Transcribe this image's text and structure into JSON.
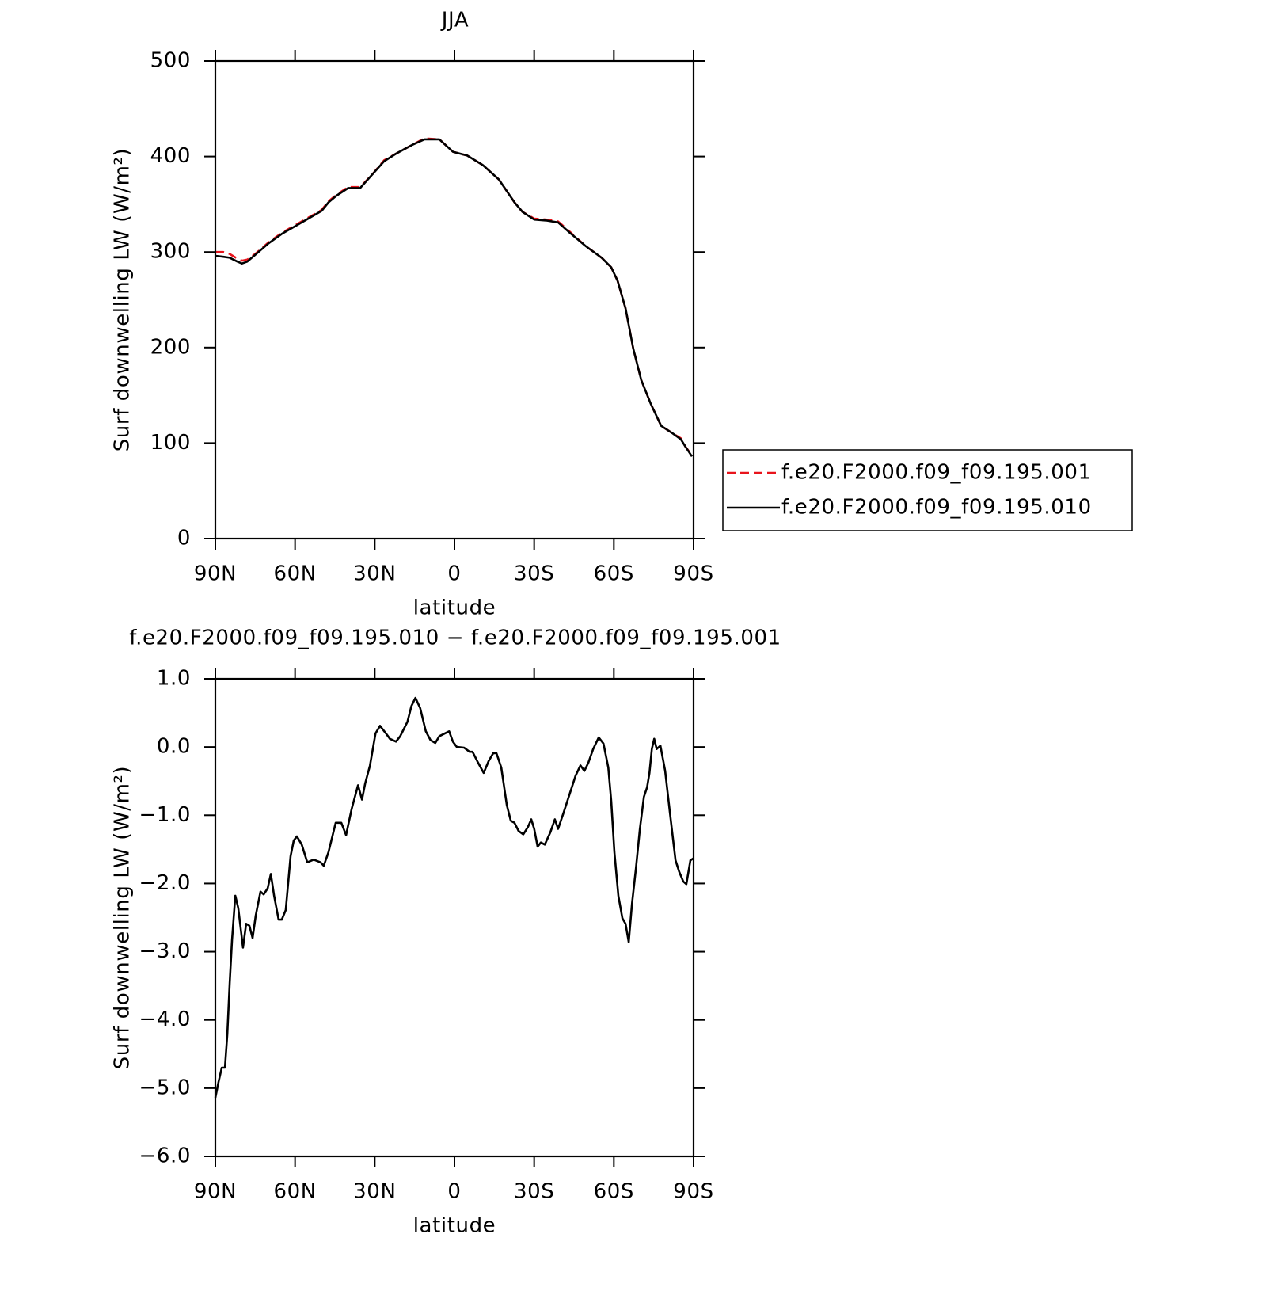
{
  "chart_data": [
    {
      "type": "line",
      "title": "JJA",
      "x_label": "latitude",
      "y_label": "Surf downwelling LW (W/m²)",
      "x": [
        90,
        87,
        84.6,
        81.7,
        80,
        78,
        75,
        70,
        65,
        60,
        55,
        50,
        47.4,
        44.4,
        40,
        35.5,
        31,
        26.5,
        22,
        16,
        11.3,
        5.7,
        0.6,
        -4.8,
        -10.7,
        -16.7,
        -22.6,
        -25.6,
        -30,
        -34.5,
        -39,
        -43.5,
        -49.5,
        -55.4,
        -59,
        -61.4,
        -64.4,
        -67.3,
        -70.3,
        -73.9,
        -77.8,
        -82.2,
        -85.2,
        -87,
        -89.4
      ],
      "series": [
        {
          "name": "f.e20.F2000.f09_f09.195.001",
          "color": "#e8141c",
          "line_style": "dashed",
          "values": [
            300,
            300,
            298,
            293,
            291,
            292,
            298,
            310,
            320,
            328,
            336,
            344,
            353,
            360,
            368,
            368,
            381,
            396,
            403,
            412,
            419,
            418,
            405,
            401,
            391,
            376,
            352,
            342,
            335,
            334,
            332,
            321,
            306,
            294,
            284,
            270,
            241,
            199,
            166,
            141,
            118,
            110,
            105,
            96,
            87
          ]
        },
        {
          "name": "f.e20.F2000.f09_f09.195.010",
          "color": "#000000",
          "line_style": "solid",
          "values": [
            296,
            295,
            294,
            290,
            288,
            290,
            297,
            309,
            319,
            327,
            335,
            343,
            352,
            359,
            367,
            367,
            381,
            395,
            403,
            412,
            418,
            418,
            405,
            401,
            391,
            376,
            352,
            342,
            334,
            333,
            331,
            320,
            306,
            294,
            284,
            270,
            241,
            199,
            166,
            141,
            118,
            110,
            104,
            96,
            86
          ]
        }
      ],
      "xlim": [
        90,
        -90
      ],
      "xticks": [
        {
          "value": 90,
          "label": "90N"
        },
        {
          "value": 60,
          "label": "60N"
        },
        {
          "value": 30,
          "label": "30N"
        },
        0,
        {
          "value": -30,
          "label": "30S"
        },
        {
          "value": -60,
          "label": "60S"
        },
        {
          "value": -90,
          "label": "90S"
        }
      ],
      "ylim": [
        0,
        500
      ],
      "yticks": [
        0,
        100,
        200,
        300,
        400,
        500
      ],
      "legend": "outside-right"
    },
    {
      "type": "line",
      "title": "f.e20.F2000.f09_f09.195.010 − f.e20.F2000.f09_f09.195.001",
      "x_label": "latitude",
      "y_label": "Surf downwelling LW (W/m²)",
      "x": [
        90,
        88.8,
        87.6,
        86.4,
        85.5,
        84.6,
        83.7,
        82.5,
        81.4,
        79.6,
        78.4,
        77.2,
        76,
        74.8,
        73,
        71.8,
        70.3,
        69.1,
        67.9,
        66.2,
        65,
        63.5,
        61.7,
        60.5,
        59.3,
        57.5,
        55.4,
        53,
        50.4,
        49.2,
        47.4,
        44.7,
        42.6,
        40.8,
        38.7,
        36.3,
        34.8,
        33.6,
        31.8,
        29.7,
        28,
        25.8,
        24.3,
        22,
        20.4,
        17.7,
        16.2,
        14.7,
        12.9,
        10.8,
        9,
        7.2,
        5.7,
        3.6,
        2,
        0.6,
        -0.9,
        -3.6,
        -5.7,
        -6.8,
        -8.6,
        -11,
        -12.8,
        -14.6,
        -15.8,
        -17.6,
        -19.7,
        -21.2,
        -22.6,
        -24.1,
        -25.9,
        -27.7,
        -28.9,
        -30,
        -31.3,
        -32.5,
        -34,
        -36.1,
        -37.8,
        -39,
        -41.1,
        -43.5,
        -45.6,
        -47.4,
        -48.9,
        -50.4,
        -52.2,
        -54.3,
        -56.1,
        -57.9,
        -59,
        -60.2,
        -61.7,
        -63.2,
        -64.4,
        -65.6,
        -66.8,
        -68.3,
        -69.8,
        -71.3,
        -72.5,
        -73.4,
        -74.3,
        -75.2,
        -76.1,
        -77.5,
        -79.3,
        -81.1,
        -83.2,
        -84.6,
        -86.1,
        -87.3,
        -88.8,
        -90
      ],
      "values": [
        -5.14,
        -4.91,
        -4.7,
        -4.7,
        -4.21,
        -3.46,
        -2.82,
        -2.18,
        -2.36,
        -2.94,
        -2.59,
        -2.62,
        -2.8,
        -2.47,
        -2.12,
        -2.16,
        -2.07,
        -1.86,
        -2.18,
        -2.53,
        -2.53,
        -2.39,
        -1.6,
        -1.37,
        -1.31,
        -1.43,
        -1.69,
        -1.65,
        -1.69,
        -1.74,
        -1.54,
        -1.11,
        -1.11,
        -1.29,
        -0.91,
        -0.56,
        -0.77,
        -0.53,
        -0.27,
        0.2,
        0.31,
        0.2,
        0.12,
        0.08,
        0.16,
        0.37,
        0.6,
        0.72,
        0.57,
        0.23,
        0.1,
        0.06,
        0.16,
        0.2,
        0.23,
        0.08,
        0,
        -0.01,
        -0.07,
        -0.07,
        -0.21,
        -0.38,
        -0.21,
        -0.09,
        -0.09,
        -0.3,
        -0.85,
        -1.08,
        -1.11,
        -1.23,
        -1.28,
        -1.17,
        -1.06,
        -1.2,
        -1.46,
        -1.4,
        -1.43,
        -1.25,
        -1.06,
        -1.2,
        -0.96,
        -0.67,
        -0.42,
        -0.27,
        -0.35,
        -0.23,
        -0.03,
        0.14,
        0.05,
        -0.3,
        -0.79,
        -1.54,
        -2.18,
        -2.51,
        -2.59,
        -2.86,
        -2.3,
        -1.78,
        -1.2,
        -0.73,
        -0.59,
        -0.38,
        -0.03,
        0.12,
        -0.03,
        0.02,
        -0.35,
        -0.96,
        -1.66,
        -1.83,
        -1.97,
        -2.01,
        -1.66,
        -1.63
      ],
      "color": "#000000",
      "xlim": [
        90,
        -90
      ],
      "xticks": [
        {
          "value": 90,
          "label": "90N"
        },
        {
          "value": 60,
          "label": "60N"
        },
        {
          "value": 30,
          "label": "30N"
        },
        0,
        {
          "value": -30,
          "label": "30S"
        },
        {
          "value": -60,
          "label": "60S"
        },
        {
          "value": -90,
          "label": "90S"
        }
      ],
      "ylim": [
        -6,
        1
      ],
      "yticks": [
        {
          "value": 1,
          "label": "1.0"
        },
        {
          "value": 0,
          "label": "0.0"
        },
        {
          "value": -1,
          "label": "−1.0"
        },
        {
          "value": -2,
          "label": "−2.0"
        },
        {
          "value": -3,
          "label": "−3.0"
        },
        {
          "value": -4,
          "label": "−4.0"
        },
        {
          "value": -5,
          "label": "−5.0"
        },
        {
          "value": -6,
          "label": "−6.0"
        }
      ]
    }
  ]
}
